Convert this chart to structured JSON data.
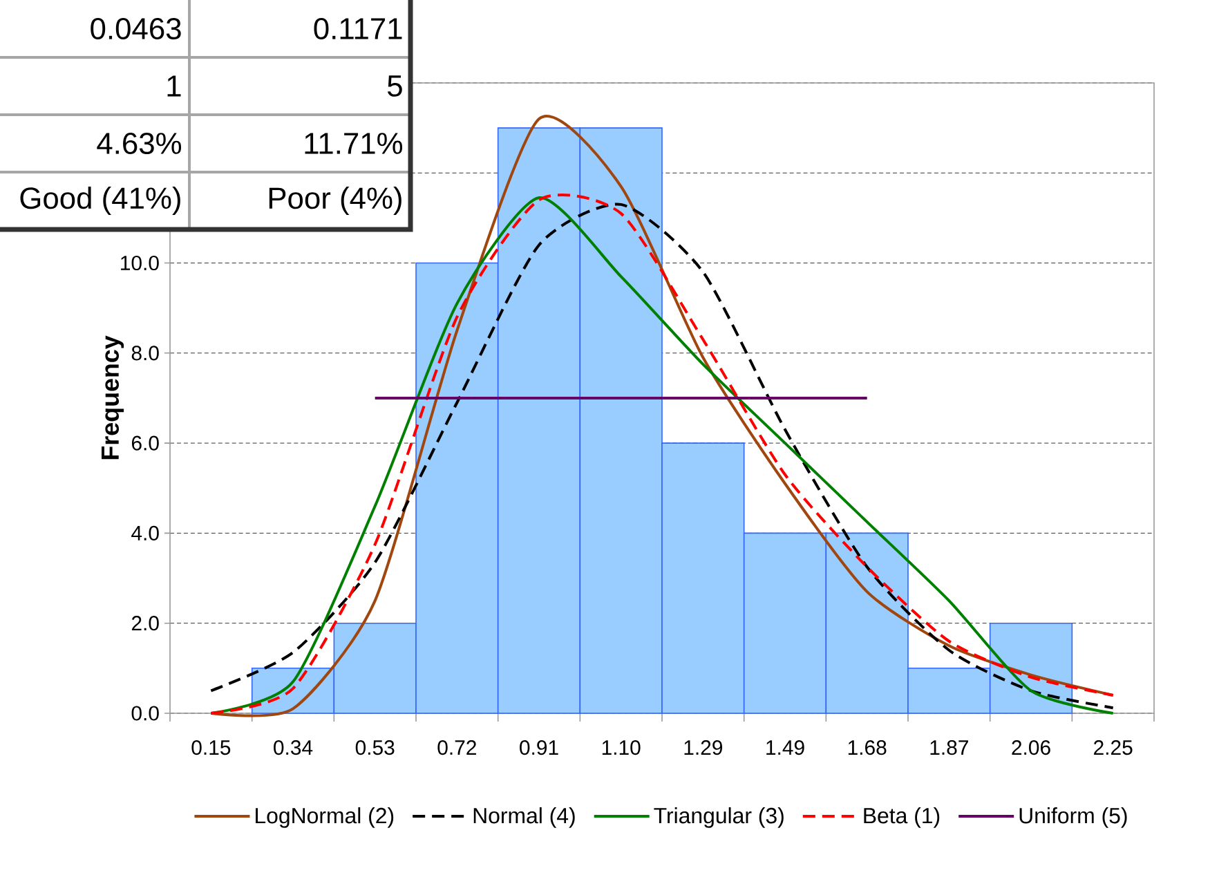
{
  "chart_data": {
    "type": "bar",
    "ylabel": "Frequency",
    "categories": [
      "0.15",
      "0.34",
      "0.53",
      "0.72",
      "0.91",
      "1.10",
      "1.29",
      "1.49",
      "1.68",
      "1.87",
      "2.06",
      "2.25"
    ],
    "series": [
      {
        "color": "#99ccff",
        "values": [
          null,
          1,
          2,
          10,
          13,
          13,
          6,
          4,
          4,
          1,
          2,
          null
        ]
      },
      {
        "type": "line",
        "name": "LogNormal (2)",
        "color": "#a0460f",
        "line_style": "solid",
        "values": [
          0,
          0.1,
          2.5,
          8.5,
          13.2,
          11.7,
          7.9,
          5.1,
          2.7,
          1.5,
          0.85,
          0.4
        ]
      },
      {
        "type": "line",
        "name": "Normal (4)",
        "color": "#000000",
        "line_style": "dashed",
        "values": [
          0.5,
          1.35,
          3.35,
          6.9,
          10.4,
          11.3,
          9.8,
          6.3,
          3.25,
          1.4,
          0.5,
          0.12
        ]
      },
      {
        "type": "line",
        "name": "Triangular (3)",
        "color": "#008000",
        "line_style": "solid",
        "values": [
          0,
          0.7,
          4.6,
          9.1,
          11.45,
          9.7,
          7.75,
          6.0,
          4.25,
          2.5,
          0.5,
          0
        ]
      },
      {
        "type": "line",
        "name": "Beta (1)",
        "color": "#ff0000",
        "line_style": "dashed",
        "values": [
          0,
          0.55,
          3.75,
          8.8,
          11.4,
          11.1,
          8.3,
          5.3,
          3.25,
          1.6,
          0.8,
          0.4
        ]
      },
      {
        "type": "line",
        "name": "Uniform (5)",
        "color": "#660066",
        "line_style": "solid",
        "values": [
          null,
          null,
          7.0,
          7.0,
          7.0,
          7.0,
          7.0,
          7.0,
          7.0,
          null,
          null,
          null
        ]
      }
    ],
    "ylim": [
      0,
      14
    ],
    "yticks": [
      {
        "value": 0,
        "label": "0.0"
      },
      {
        "value": 2,
        "label": "2.0"
      },
      {
        "value": 4,
        "label": "4.0"
      },
      {
        "value": 6,
        "label": "6.0"
      },
      {
        "value": 8,
        "label": "8.0"
      },
      {
        "value": 10,
        "label": "10.0"
      },
      {
        "value": 12,
        "label": null
      },
      {
        "value": 14,
        "label": null
      }
    ],
    "grid": "y",
    "legend": "bottom",
    "marker": "none",
    "annotations": [
      "0.0463",
      "0.1171",
      "1",
      "5",
      "4.63%",
      "11.71%",
      "Good (41%)",
      "Poor (4%)"
    ]
  }
}
